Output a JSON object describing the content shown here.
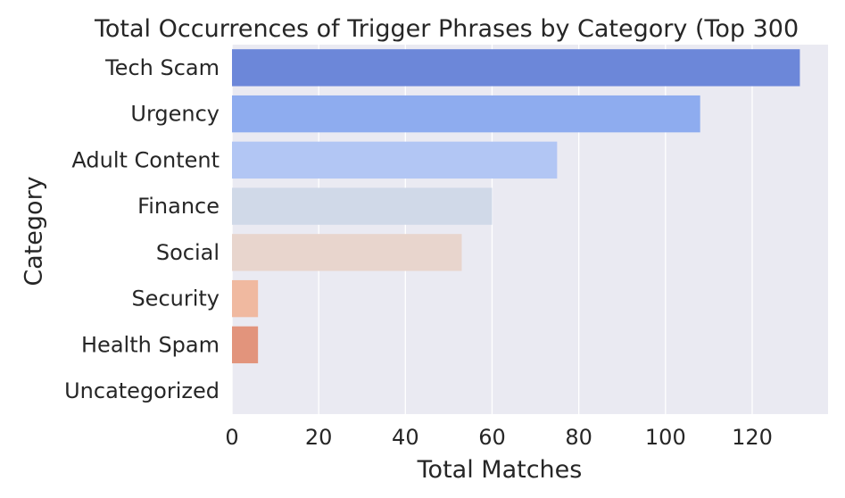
{
  "chart_data": {
    "type": "bar",
    "orientation": "horizontal",
    "title": "Total Occurrences of Trigger Phrases by Category (Top 300",
    "xlabel": "Total Matches",
    "ylabel": "Category",
    "categories": [
      "Tech Scam",
      "Urgency",
      "Adult Content",
      "Finance",
      "Social",
      "Security",
      "Health Spam",
      "Uncategorized"
    ],
    "values": [
      131,
      108,
      75,
      60,
      53,
      6,
      6,
      0
    ],
    "xlim": [
      0,
      137.5
    ],
    "xticks": [
      0,
      20,
      40,
      60,
      80,
      100,
      120
    ],
    "grid": true,
    "legend": "none",
    "colors": [
      "#6c87d9",
      "#8eacef",
      "#b2c6f4",
      "#d0d9e8",
      "#e8d5cd",
      "#f0b9a0",
      "#e2947c",
      "#d06050"
    ],
    "background": "#eaeaf2",
    "grid_color": "#ffffff"
  }
}
